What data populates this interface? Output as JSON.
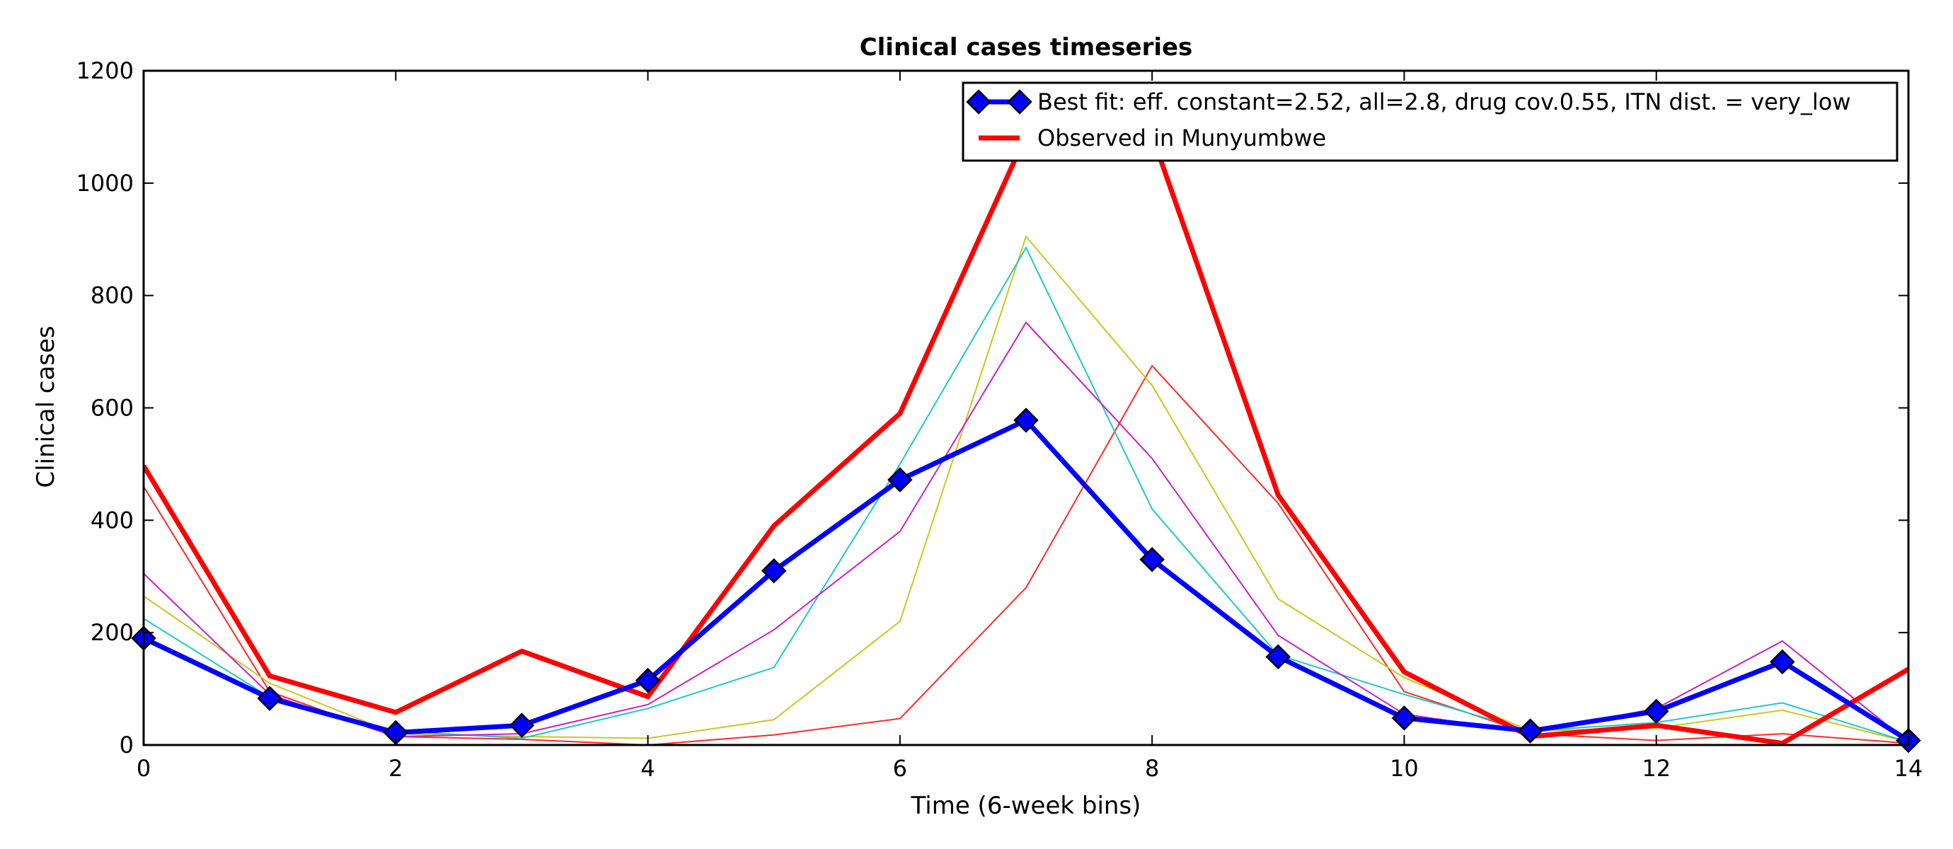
{
  "chart_data": {
    "type": "line",
    "title": "Clinical cases timeseries",
    "xlabel": "Time (6-week bins)",
    "ylabel": "Clinical cases",
    "xlim": [
      0,
      14
    ],
    "ylim": [
      0,
      1200
    ],
    "xticks": [
      0,
      2,
      4,
      6,
      8,
      10,
      12,
      14
    ],
    "yticks": [
      0,
      200,
      400,
      600,
      800,
      1000,
      1200
    ],
    "grid": false,
    "legend_position": "top-right",
    "x": [
      0,
      1,
      2,
      3,
      4,
      5,
      6,
      7,
      8,
      9,
      10,
      11,
      12,
      13,
      14
    ],
    "series": [
      {
        "color": "#ff2a2a",
        "width": 2,
        "marker": "none",
        "values": [
          460,
          95,
          15,
          10,
          0,
          18,
          47,
          280,
          675,
          430,
          95,
          20,
          8,
          20,
          3
        ]
      },
      {
        "color": "#c8c820",
        "width": 2,
        "marker": "none",
        "values": [
          265,
          110,
          20,
          15,
          12,
          45,
          220,
          905,
          640,
          260,
          120,
          25,
          30,
          62,
          5
        ]
      },
      {
        "color": "#20c8c8",
        "width": 2,
        "marker": "none",
        "values": [
          225,
          85,
          25,
          12,
          65,
          138,
          500,
          885,
          420,
          160,
          90,
          25,
          40,
          75,
          5
        ]
      },
      {
        "color": "#c820c8",
        "width": 2,
        "marker": "none",
        "values": [
          305,
          90,
          15,
          20,
          72,
          205,
          380,
          752,
          510,
          195,
          55,
          22,
          65,
          185,
          5
        ]
      },
      {
        "name": "Observed in Munyumbwe",
        "color": "#ff0000",
        "width": 7,
        "marker": "none",
        "values": [
          497,
          123,
          58,
          167,
          86,
          390,
          590,
          1085,
          1085,
          445,
          130,
          15,
          35,
          3,
          135
        ]
      },
      {
        "name": "Best fit: eff. constant=2.52, all=2.8, drug cov.0.55, ITN dist. = very_low",
        "color": "#0000ff",
        "width": 7,
        "marker": "diamond",
        "values": [
          190,
          83,
          22,
          35,
          115,
          310,
          472,
          578,
          330,
          157,
          48,
          25,
          60,
          148,
          8
        ]
      }
    ],
    "legend_order": [
      5,
      4
    ]
  }
}
